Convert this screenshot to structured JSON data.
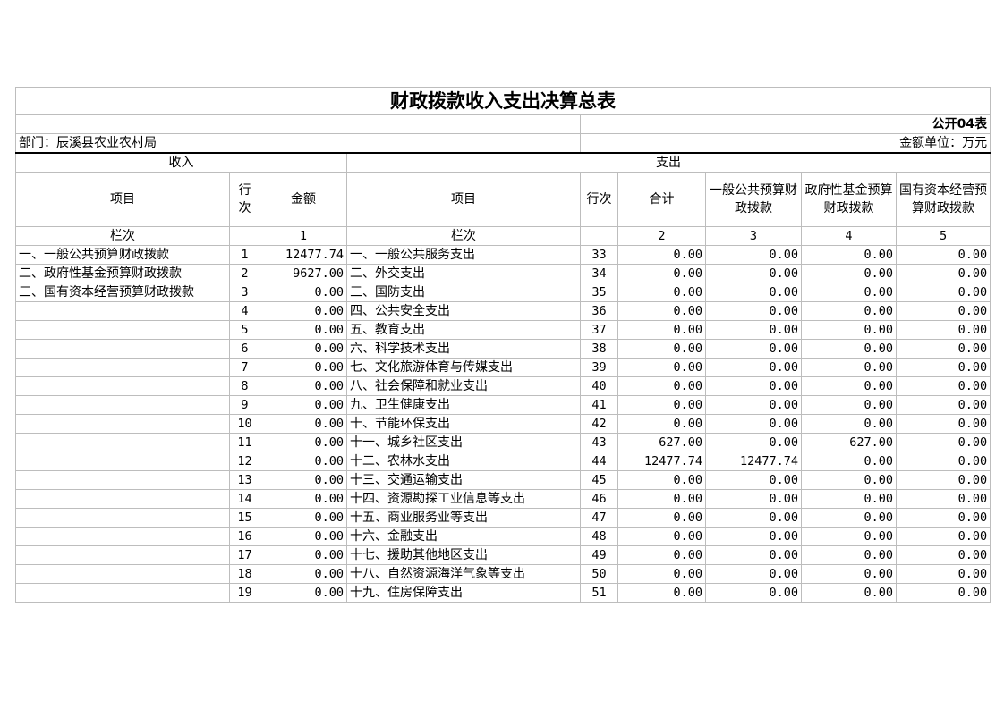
{
  "title": "财政拨款收入支出决算总表",
  "form_no": "公开04表",
  "department": "部门：辰溪县农业农村局",
  "unit": "金额单位：万元",
  "income_header": "收入",
  "expense_header": "支出",
  "columns": {
    "income_item": "项目",
    "income_row": "行次",
    "income_amount": "金额",
    "expense_item": "项目",
    "expense_row": "行次",
    "total": "合计",
    "general": "一般公共预算财政拨款",
    "fund": "政府性基金预算财政拨款",
    "state_capital": "国有资本经营预算财政拨款"
  },
  "column_index_row": {
    "label_income": "栏次",
    "income_amount": "1",
    "label_expense": "栏次",
    "total": "2",
    "general": "3",
    "fund": "4",
    "state_capital": "5"
  },
  "rows": [
    {
      "in_item": "一、一般公共预算财政拨款",
      "in_no": "1",
      "in_amt": "12477.74",
      "ex_item": "一、一般公共服务支出",
      "ex_no": "33",
      "total": "0.00",
      "general": "0.00",
      "fund": "0.00",
      "capital": "0.00"
    },
    {
      "in_item": "二、政府性基金预算财政拨款",
      "in_no": "2",
      "in_amt": "9627.00",
      "ex_item": "二、外交支出",
      "ex_no": "34",
      "total": "0.00",
      "general": "0.00",
      "fund": "0.00",
      "capital": "0.00"
    },
    {
      "in_item": "三、国有资本经营预算财政拨款",
      "in_no": "3",
      "in_amt": "0.00",
      "ex_item": "三、国防支出",
      "ex_no": "35",
      "total": "0.00",
      "general": "0.00",
      "fund": "0.00",
      "capital": "0.00"
    },
    {
      "in_item": "",
      "in_no": "4",
      "in_amt": "0.00",
      "ex_item": "四、公共安全支出",
      "ex_no": "36",
      "total": "0.00",
      "general": "0.00",
      "fund": "0.00",
      "capital": "0.00"
    },
    {
      "in_item": "",
      "in_no": "5",
      "in_amt": "0.00",
      "ex_item": "五、教育支出",
      "ex_no": "37",
      "total": "0.00",
      "general": "0.00",
      "fund": "0.00",
      "capital": "0.00"
    },
    {
      "in_item": "",
      "in_no": "6",
      "in_amt": "0.00",
      "ex_item": "六、科学技术支出",
      "ex_no": "38",
      "total": "0.00",
      "general": "0.00",
      "fund": "0.00",
      "capital": "0.00"
    },
    {
      "in_item": "",
      "in_no": "7",
      "in_amt": "0.00",
      "ex_item": "七、文化旅游体育与传媒支出",
      "ex_no": "39",
      "total": "0.00",
      "general": "0.00",
      "fund": "0.00",
      "capital": "0.00"
    },
    {
      "in_item": "",
      "in_no": "8",
      "in_amt": "0.00",
      "ex_item": "八、社会保障和就业支出",
      "ex_no": "40",
      "total": "0.00",
      "general": "0.00",
      "fund": "0.00",
      "capital": "0.00"
    },
    {
      "in_item": "",
      "in_no": "9",
      "in_amt": "0.00",
      "ex_item": "九、卫生健康支出",
      "ex_no": "41",
      "total": "0.00",
      "general": "0.00",
      "fund": "0.00",
      "capital": "0.00"
    },
    {
      "in_item": "",
      "in_no": "10",
      "in_amt": "0.00",
      "ex_item": "十、节能环保支出",
      "ex_no": "42",
      "total": "0.00",
      "general": "0.00",
      "fund": "0.00",
      "capital": "0.00"
    },
    {
      "in_item": "",
      "in_no": "11",
      "in_amt": "0.00",
      "ex_item": "十一、城乡社区支出",
      "ex_no": "43",
      "total": "627.00",
      "general": "0.00",
      "fund": "627.00",
      "capital": "0.00"
    },
    {
      "in_item": "",
      "in_no": "12",
      "in_amt": "0.00",
      "ex_item": "十二、农林水支出",
      "ex_no": "44",
      "total": "12477.74",
      "general": "12477.74",
      "fund": "0.00",
      "capital": "0.00"
    },
    {
      "in_item": "",
      "in_no": "13",
      "in_amt": "0.00",
      "ex_item": "十三、交通运输支出",
      "ex_no": "45",
      "total": "0.00",
      "general": "0.00",
      "fund": "0.00",
      "capital": "0.00"
    },
    {
      "in_item": "",
      "in_no": "14",
      "in_amt": "0.00",
      "ex_item": "十四、资源勘探工业信息等支出",
      "ex_no": "46",
      "total": "0.00",
      "general": "0.00",
      "fund": "0.00",
      "capital": "0.00"
    },
    {
      "in_item": "",
      "in_no": "15",
      "in_amt": "0.00",
      "ex_item": "十五、商业服务业等支出",
      "ex_no": "47",
      "total": "0.00",
      "general": "0.00",
      "fund": "0.00",
      "capital": "0.00"
    },
    {
      "in_item": "",
      "in_no": "16",
      "in_amt": "0.00",
      "ex_item": "十六、金融支出",
      "ex_no": "48",
      "total": "0.00",
      "general": "0.00",
      "fund": "0.00",
      "capital": "0.00"
    },
    {
      "in_item": "",
      "in_no": "17",
      "in_amt": "0.00",
      "ex_item": "十七、援助其他地区支出",
      "ex_no": "49",
      "total": "0.00",
      "general": "0.00",
      "fund": "0.00",
      "capital": "0.00"
    },
    {
      "in_item": "",
      "in_no": "18",
      "in_amt": "0.00",
      "ex_item": "十八、自然资源海洋气象等支出",
      "ex_no": "50",
      "total": "0.00",
      "general": "0.00",
      "fund": "0.00",
      "capital": "0.00"
    },
    {
      "in_item": "",
      "in_no": "19",
      "in_amt": "0.00",
      "ex_item": "十九、住房保障支出",
      "ex_no": "51",
      "total": "0.00",
      "general": "0.00",
      "fund": "0.00",
      "capital": "0.00"
    }
  ]
}
